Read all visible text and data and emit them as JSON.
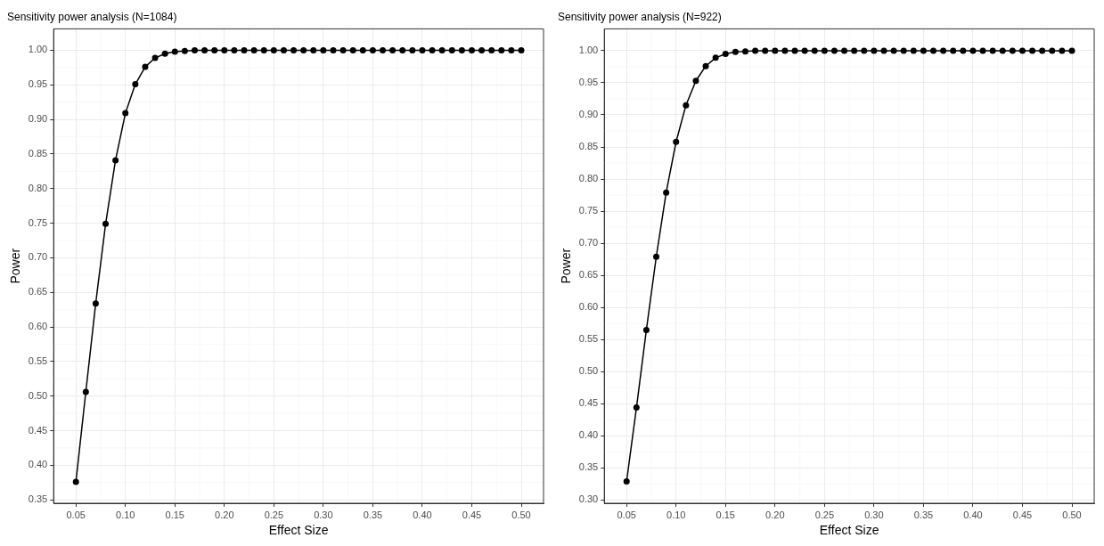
{
  "chart_data": [
    {
      "type": "line",
      "title": "Sensitivity power analysis (N=1084)",
      "xlabel": "Effect Size",
      "ylabel": "Power",
      "marker": "circle",
      "line_style": "solid",
      "grid": true,
      "legend": false,
      "x": [
        0.05,
        0.06,
        0.07,
        0.08,
        0.09,
        0.1,
        0.11,
        0.12,
        0.13,
        0.14,
        0.15,
        0.16,
        0.17,
        0.18,
        0.19,
        0.2,
        0.21,
        0.22,
        0.23,
        0.24,
        0.25,
        0.26,
        0.27,
        0.28,
        0.29,
        0.3,
        0.31,
        0.32,
        0.33,
        0.34,
        0.35,
        0.36,
        0.37,
        0.38,
        0.39,
        0.4,
        0.41,
        0.42,
        0.43,
        0.44,
        0.45,
        0.46,
        0.47,
        0.48,
        0.49,
        0.5
      ],
      "series": [
        {
          "color": "#000000",
          "values": [
            0.376,
            0.506,
            0.634,
            0.749,
            0.841,
            0.909,
            0.951,
            0.976,
            0.989,
            0.995,
            0.998,
            0.999,
            1,
            1,
            1,
            1,
            1,
            1,
            1,
            1,
            1,
            1,
            1,
            1,
            1,
            1,
            1,
            1,
            1,
            1,
            1,
            1,
            1,
            1,
            1,
            1,
            1,
            1,
            1,
            1,
            1,
            1,
            1,
            1,
            1,
            1
          ]
        }
      ],
      "xlim": [
        0.0275,
        0.5225
      ],
      "ylim": [
        0.345,
        1.031
      ],
      "xticks": [
        0.05,
        {
          "value": 0.1,
          "label": "0.10"
        },
        0.15,
        {
          "value": 0.2,
          "label": "0.20"
        },
        0.25,
        {
          "value": 0.3,
          "label": "0.30"
        },
        0.35,
        {
          "value": 0.4,
          "label": "0.40"
        },
        0.45,
        {
          "value": 0.5,
          "label": "0.50"
        }
      ],
      "yticks": [
        0.35,
        {
          "value": 0.4,
          "label": "0.40"
        },
        0.45,
        {
          "value": 0.5,
          "label": "0.50"
        },
        0.55,
        {
          "value": 0.6,
          "label": "0.60"
        },
        0.65,
        {
          "value": 0.7,
          "label": "0.70"
        },
        0.75,
        {
          "value": 0.8,
          "label": "0.80"
        },
        0.85,
        {
          "value": 0.9,
          "label": "0.90"
        },
        0.95,
        {
          "value": 1,
          "label": "1.00"
        }
      ]
    },
    {
      "type": "line",
      "title": "Sensitivity power analysis (N=922)",
      "xlabel": "Effect Size",
      "ylabel": "Power",
      "marker": "circle",
      "line_style": "solid",
      "grid": true,
      "legend": false,
      "x": [
        0.05,
        0.06,
        0.07,
        0.08,
        0.09,
        0.1,
        0.11,
        0.12,
        0.13,
        0.14,
        0.15,
        0.16,
        0.17,
        0.18,
        0.19,
        0.2,
        0.21,
        0.22,
        0.23,
        0.24,
        0.25,
        0.26,
        0.27,
        0.28,
        0.29,
        0.3,
        0.31,
        0.32,
        0.33,
        0.34,
        0.35,
        0.36,
        0.37,
        0.38,
        0.39,
        0.4,
        0.41,
        0.42,
        0.43,
        0.44,
        0.45,
        0.46,
        0.47,
        0.48,
        0.49,
        0.5
      ],
      "series": [
        {
          "color": "#000000",
          "values": [
            0.329,
            0.444,
            0.565,
            0.679,
            0.779,
            0.858,
            0.915,
            0.953,
            0.976,
            0.989,
            0.995,
            0.998,
            0.999,
            1,
            1,
            1,
            1,
            1,
            1,
            1,
            1,
            1,
            1,
            1,
            1,
            1,
            1,
            1,
            1,
            1,
            1,
            1,
            1,
            1,
            1,
            1,
            1,
            1,
            1,
            1,
            1,
            1,
            1,
            1,
            1,
            1
          ]
        }
      ],
      "xlim": [
        0.0275,
        0.5225
      ],
      "ylim": [
        0.295,
        1.034
      ],
      "xticks": [
        0.05,
        {
          "value": 0.1,
          "label": "0.10"
        },
        0.15,
        {
          "value": 0.2,
          "label": "0.20"
        },
        0.25,
        {
          "value": 0.3,
          "label": "0.30"
        },
        0.35,
        {
          "value": 0.4,
          "label": "0.40"
        },
        0.45,
        {
          "value": 0.5,
          "label": "0.50"
        }
      ],
      "yticks": [
        {
          "value": 0.3,
          "label": "0.30"
        },
        0.35,
        {
          "value": 0.4,
          "label": "0.40"
        },
        0.45,
        {
          "value": 0.5,
          "label": "0.50"
        },
        0.55,
        {
          "value": 0.6,
          "label": "0.60"
        },
        0.65,
        {
          "value": 0.7,
          "label": "0.70"
        },
        0.75,
        {
          "value": 0.8,
          "label": "0.80"
        },
        0.85,
        {
          "value": 0.9,
          "label": "0.90"
        },
        0.95,
        {
          "value": 1,
          "label": "1.00"
        }
      ]
    }
  ]
}
